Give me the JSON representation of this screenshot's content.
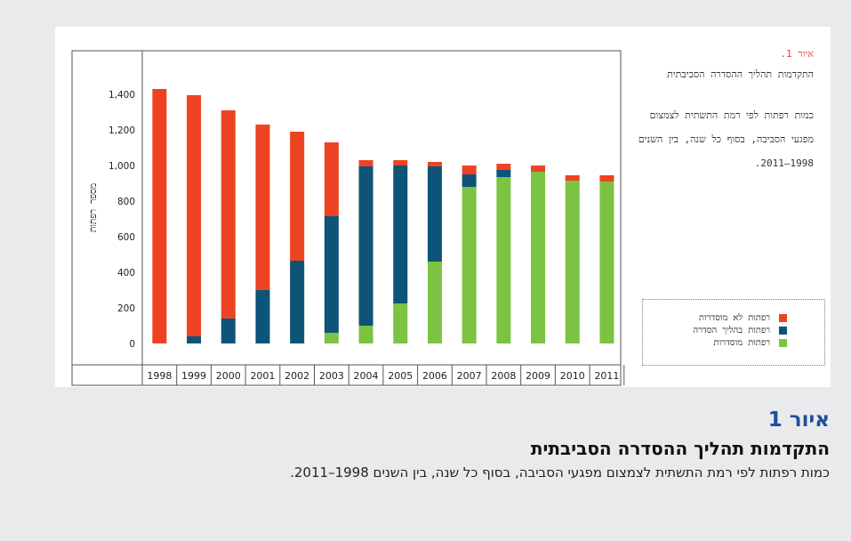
{
  "side_panel": {
    "figure_label": "איור 1.",
    "title": "התקדמות תהליך ההסדרה הסביבתית",
    "description": "כמות רפתות לפי רמת התשתית לצמצום מפגעי הסביבה, בסוף כל שנה, בין השנים 1998–2011."
  },
  "caption": {
    "figure_label": "איור 1",
    "title": "התקדמות תהליך ההסדרה הסביבתית",
    "subtitle": "כמות רפתות לפי רמת התשתית לצמצום מפגעי הסביבה, בסוף כל שנה, בין השנים 1998–2011."
  },
  "colors": {
    "red": "#ee4322",
    "blue": "#0d5478",
    "green": "#7cc342",
    "caption_blue": "#1f4e9c"
  },
  "chart_data": {
    "type": "bar",
    "stacked": true,
    "categories": [
      "1998",
      "1999",
      "2000",
      "2001",
      "2002",
      "2003",
      "2004",
      "2005",
      "2006",
      "2007",
      "2008",
      "2009",
      "2010",
      "2011"
    ],
    "series": [
      {
        "name": "רפתות מוסדרות",
        "color": "#7cc342",
        "values": [
          0,
          0,
          0,
          0,
          0,
          60,
          100,
          225,
          460,
          880,
          935,
          965,
          915,
          910
        ]
      },
      {
        "name": "רפתות בהליך הסדרה",
        "color": "#0d5478",
        "values": [
          0,
          40,
          140,
          300,
          465,
          655,
          895,
          775,
          535,
          70,
          40,
          0,
          0,
          0
        ]
      },
      {
        "name": "רפתות לא מוסדרות",
        "color": "#ee4322",
        "values": [
          1430,
          1355,
          1170,
          930,
          725,
          415,
          35,
          30,
          25,
          50,
          35,
          35,
          30,
          35
        ]
      }
    ],
    "legend_order": [
      "רפתות לא מוסדרות",
      "רפתות בהליך הסדרה",
      "רפתות מוסדרות"
    ],
    "ylabel": "מספר רפתות",
    "yticks": [
      "0",
      "200",
      "400",
      "600",
      "800",
      "1,000",
      "1,200",
      "1,400"
    ],
    "ylim": [
      0,
      1500
    ],
    "grid": false,
    "legend": "right"
  }
}
